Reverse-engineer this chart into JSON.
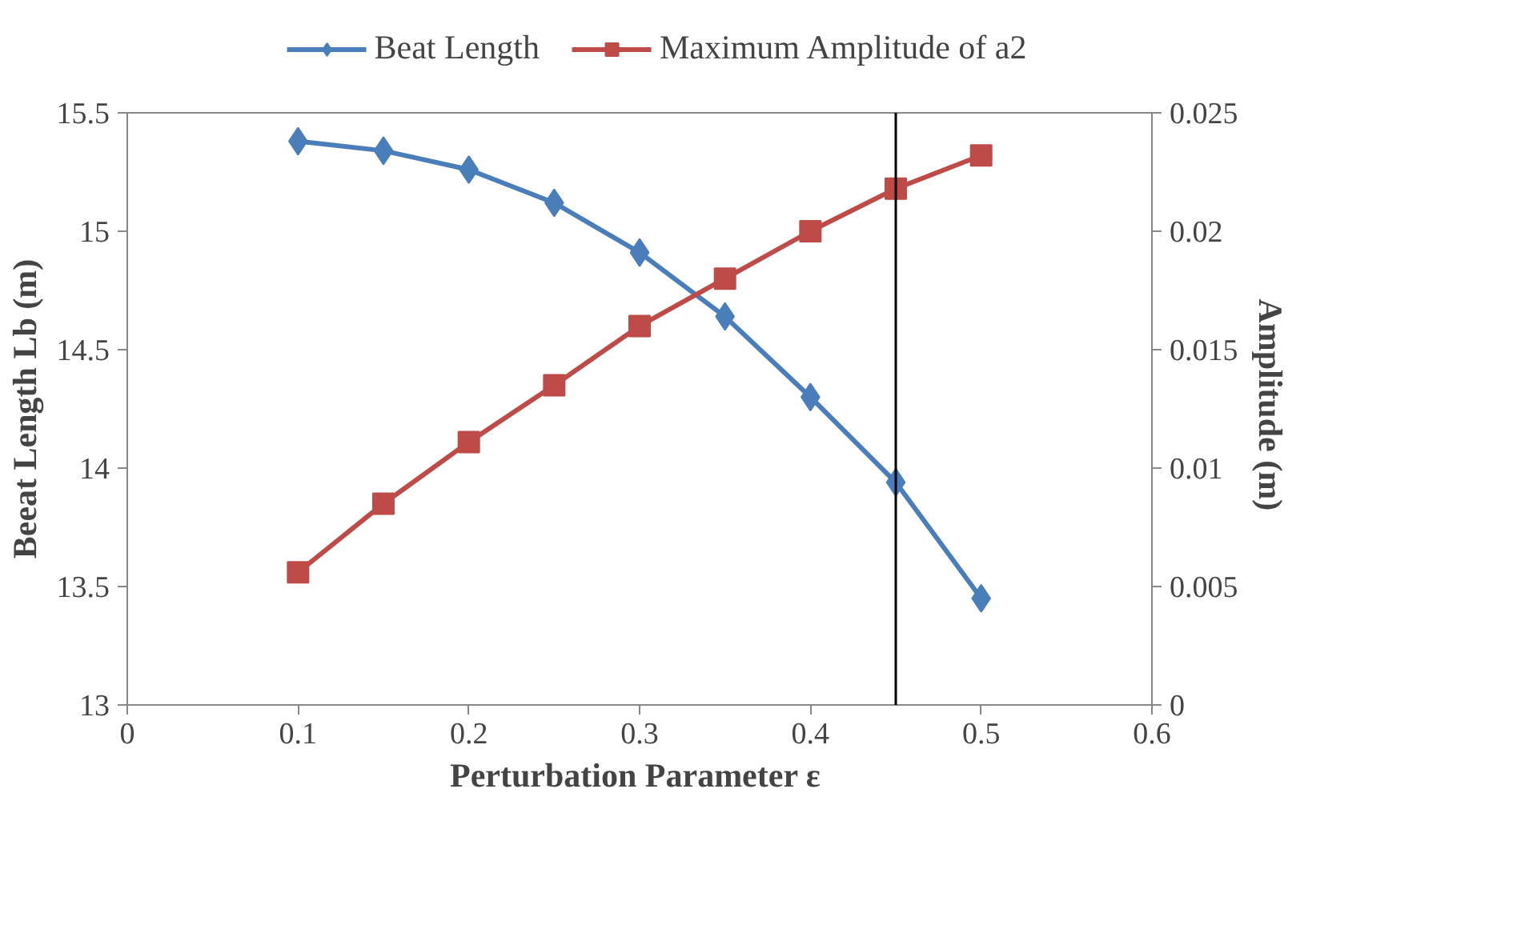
{
  "chart_data": {
    "type": "line",
    "xlabel": "Perturbation  Parameter ε",
    "ylabel": "Beeat Length Lb (m)",
    "y2label": "Amplitude  (m)",
    "x": [
      0.1,
      0.15,
      0.2,
      0.25,
      0.3,
      0.35,
      0.4,
      0.45,
      0.5
    ],
    "series": [
      {
        "name": "Beat Length",
        "color": "#4a7ebb",
        "marker": "diamond",
        "values": [
          15.38,
          15.34,
          15.26,
          15.12,
          14.91,
          14.64,
          14.3,
          13.94,
          13.45
        ]
      },
      {
        "name": "Maximum Amplitude of a2",
        "color": "#be4b48",
        "marker": "square",
        "axis": "y2",
        "values": [
          0.0056,
          0.0085,
          0.0111,
          0.0135,
          0.016,
          0.018,
          0.02,
          0.0218,
          0.0232
        ]
      }
    ],
    "xlim": [
      0,
      0.6
    ],
    "xticks": [
      0,
      0.1,
      0.2,
      0.3,
      0.4,
      0.5,
      0.6
    ],
    "ylim": [
      13,
      15.5
    ],
    "yticks": [
      13,
      13.5,
      14,
      14.5,
      15,
      15.5
    ],
    "y2lim": [
      0,
      0.025
    ],
    "y2ticks": [
      0,
      0.005,
      0.01,
      0.015,
      0.02,
      0.025
    ],
    "ref_lines": [
      {
        "axis": "x",
        "value": 0.45,
        "color": "#000000"
      }
    ],
    "grid": false,
    "legend": "top",
    "line_style": "solid"
  }
}
